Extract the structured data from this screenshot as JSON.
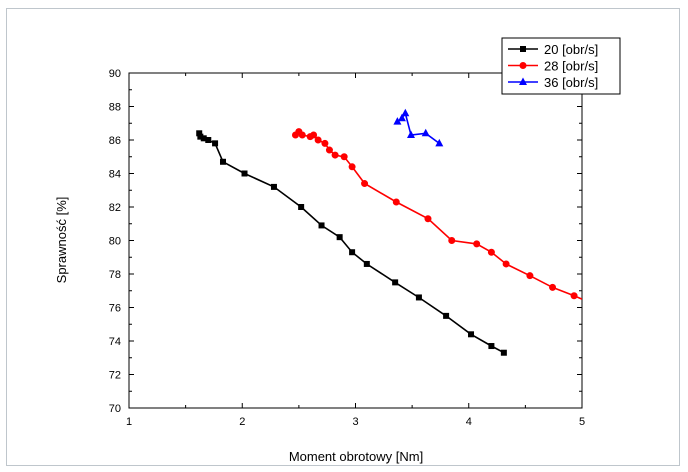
{
  "chart_data": {
    "type": "line",
    "xlabel": "Moment obrotowy [Nm]",
    "ylabel": "Sprawność [%]",
    "xlim": [
      1,
      5
    ],
    "ylim": [
      70,
      90
    ],
    "xticks": [
      1,
      2,
      3,
      4,
      5
    ],
    "yticks": [
      70,
      72,
      74,
      76,
      78,
      80,
      82,
      84,
      86,
      88,
      90
    ],
    "grid": false,
    "legend_position": "top-right",
    "series": [
      {
        "name": "20 [obr/s]",
        "color": "#000000",
        "marker": "square",
        "x": [
          1.62,
          1.63,
          1.66,
          1.7,
          1.76,
          1.83,
          2.02,
          2.28,
          2.52,
          2.7,
          2.86,
          2.97,
          3.1,
          3.35,
          3.56,
          3.8,
          4.02,
          4.2,
          4.31
        ],
        "y": [
          86.4,
          86.2,
          86.1,
          86.0,
          85.8,
          84.7,
          84.0,
          83.2,
          82.0,
          80.9,
          80.2,
          79.3,
          78.6,
          77.5,
          76.6,
          75.5,
          74.4,
          73.7,
          73.3
        ]
      },
      {
        "name": "28 [obr/s]",
        "color": "#ff0000",
        "marker": "circle",
        "x": [
          2.47,
          2.5,
          2.53,
          2.6,
          2.63,
          2.67,
          2.73,
          2.77,
          2.82,
          2.9,
          2.97,
          3.08,
          3.36,
          3.64,
          3.85,
          4.07,
          4.2,
          4.33,
          4.54,
          4.74,
          4.93,
          5.0
        ],
        "y": [
          86.3,
          86.5,
          86.3,
          86.2,
          86.3,
          86.0,
          85.8,
          85.4,
          85.1,
          85.0,
          84.4,
          83.4,
          82.3,
          81.3,
          80.0,
          79.8,
          79.3,
          78.6,
          77.9,
          77.2,
          76.7,
          76.5
        ],
        "marker_count": 21
      },
      {
        "name": "36 [obr/s]",
        "color": "#0000ff",
        "marker": "triangle",
        "x": [
          3.37,
          3.41,
          3.44,
          3.49,
          3.62,
          3.74
        ],
        "y": [
          87.1,
          87.3,
          87.6,
          86.3,
          86.4,
          85.8
        ]
      }
    ]
  }
}
